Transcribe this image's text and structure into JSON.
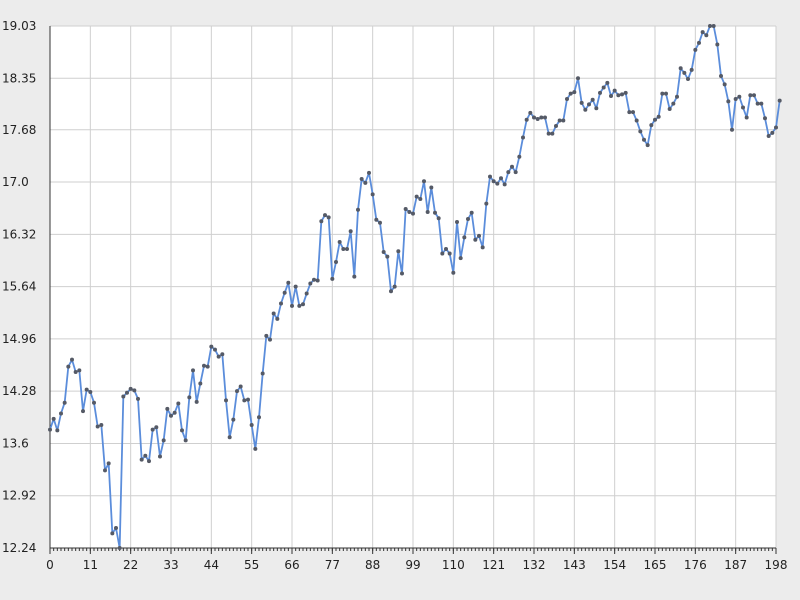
{
  "chart_data": {
    "type": "line",
    "title": "",
    "xlabel": "",
    "ylabel": "",
    "xlim": [
      0,
      198
    ],
    "ylim": [
      12.24,
      19.03
    ],
    "x_ticks": [
      0,
      11,
      22,
      33,
      44,
      55,
      66,
      77,
      88,
      99,
      110,
      121,
      132,
      143,
      154,
      165,
      176,
      187,
      198
    ],
    "y_ticks": [
      "12.24",
      "12.92",
      "13.6",
      "14.28",
      "14.96",
      "15.64",
      "16.32",
      "17.0",
      "17.68",
      "18.35",
      "19.03"
    ],
    "grid": true,
    "legend": "none",
    "colors": {
      "line": "#5b8ddb",
      "marker": "#555a66",
      "grid": "#cfcfcf",
      "plot_bg": "#ffffff",
      "page_bg": "#ececec"
    },
    "series": [
      {
        "values": [
          13.78,
          13.92,
          13.77,
          13.99,
          14.13,
          14.6,
          14.69,
          14.53,
          14.55,
          14.02,
          14.3,
          14.27,
          14.13,
          13.82,
          13.84,
          13.25,
          13.34,
          12.43,
          12.5,
          12.24,
          14.21,
          14.26,
          14.31,
          14.29,
          14.18,
          13.39,
          13.44,
          13.37,
          13.78,
          13.81,
          13.43,
          13.64,
          14.05,
          13.96,
          14.0,
          14.12,
          13.77,
          13.64,
          14.2,
          14.55,
          14.14,
          14.38,
          14.61,
          14.6,
          14.86,
          14.82,
          14.73,
          14.76,
          14.16,
          13.68,
          13.91,
          14.28,
          14.34,
          14.16,
          14.17,
          13.84,
          13.53,
          13.94,
          14.51,
          15.0,
          14.95,
          15.29,
          15.22,
          15.42,
          15.56,
          15.69,
          15.39,
          15.64,
          15.39,
          15.41,
          15.55,
          15.68,
          15.73,
          15.72,
          16.49,
          16.57,
          16.54,
          15.74,
          15.96,
          16.22,
          16.13,
          16.13,
          16.36,
          15.77,
          16.64,
          17.04,
          16.99,
          17.12,
          16.84,
          16.51,
          16.47,
          16.09,
          16.03,
          15.58,
          15.64,
          16.1,
          15.81,
          16.65,
          16.61,
          16.59,
          16.81,
          16.78,
          17.01,
          16.61,
          16.93,
          16.6,
          16.53,
          16.07,
          16.13,
          16.07,
          15.82,
          16.48,
          16.01,
          16.28,
          16.52,
          16.6,
          16.25,
          16.3,
          16.15,
          16.72,
          17.07,
          17.01,
          16.98,
          17.05,
          16.97,
          17.13,
          17.2,
          17.13,
          17.33,
          17.58,
          17.81,
          17.9,
          17.84,
          17.82,
          17.84,
          17.84,
          17.63,
          17.63,
          17.73,
          17.8,
          17.8,
          18.08,
          18.15,
          18.17,
          18.35,
          18.03,
          17.94,
          18.01,
          18.07,
          17.96,
          18.16,
          18.23,
          18.29,
          18.12,
          18.19,
          18.13,
          18.14,
          18.16,
          17.91,
          17.91,
          17.8,
          17.66,
          17.55,
          17.48,
          17.74,
          17.81,
          17.85,
          18.15,
          18.15,
          17.95,
          18.02,
          18.11,
          18.48,
          18.42,
          18.34,
          18.46,
          18.72,
          18.81,
          18.95,
          18.91,
          19.03,
          19.03,
          18.79,
          18.38,
          18.27,
          18.05,
          17.68,
          18.08,
          18.11,
          17.97,
          17.84,
          18.13,
          18.13,
          18.02,
          18.02,
          17.83,
          17.6,
          17.64,
          17.71,
          18.06
        ]
      }
    ]
  }
}
